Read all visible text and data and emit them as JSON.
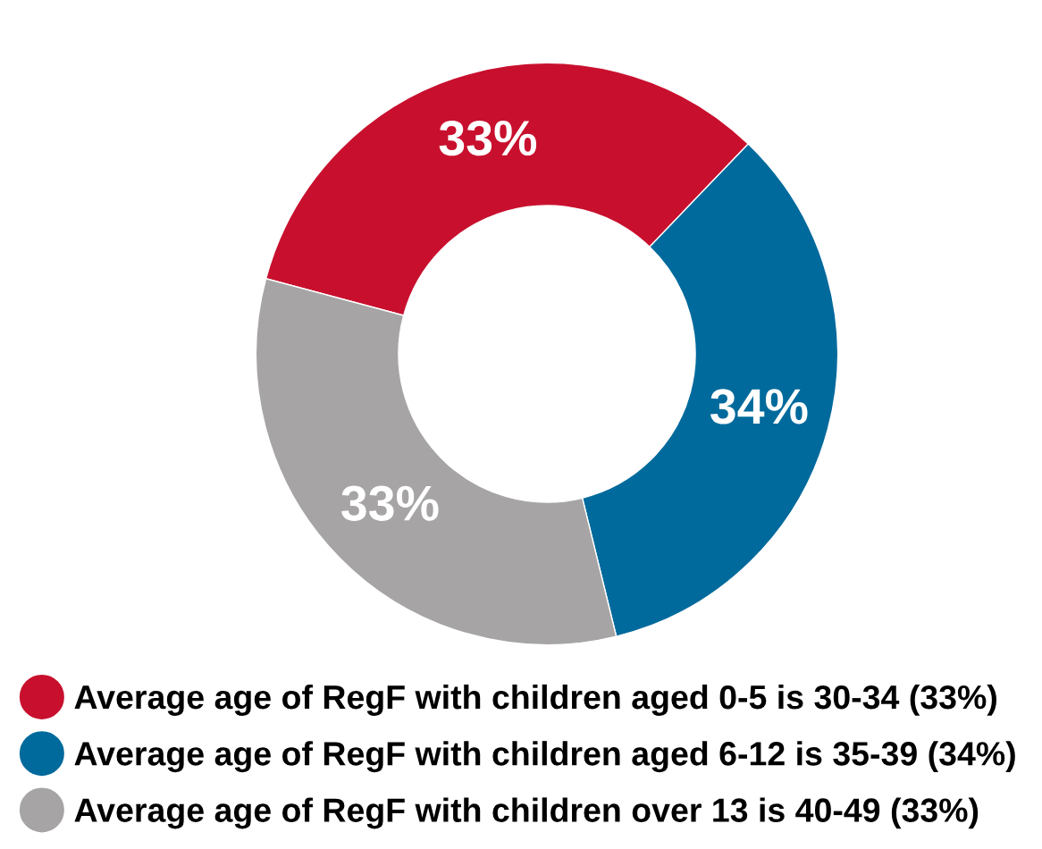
{
  "chart_data": {
    "type": "donut",
    "categories": [
      "Average age of RegF with children aged 0-5 is 30-34 (33%)",
      "Average age of RegF with children aged 6-12 is 35-39 (34%)",
      "Average age of RegF with children over 13 is 40-49 (33%)"
    ],
    "values": [
      33,
      34,
      33
    ],
    "colors": [
      "#c8102e",
      "#006a9c",
      "#a6a4a5"
    ],
    "value_labels": [
      "33%",
      "34%",
      "33%"
    ],
    "legend": "bottom"
  }
}
